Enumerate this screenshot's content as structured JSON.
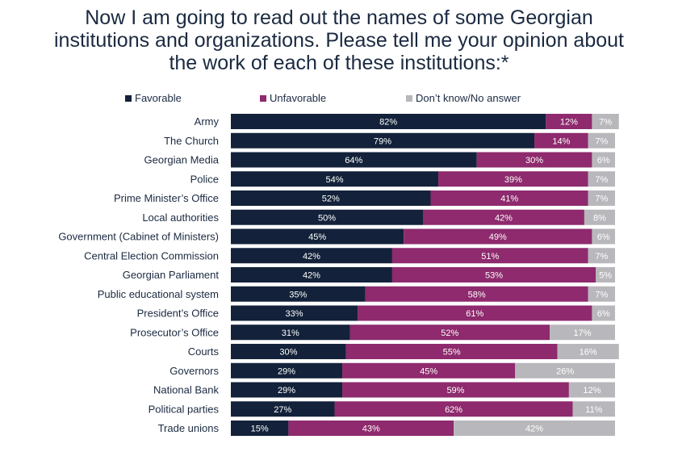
{
  "title_lines": [
    "Now I am going to read out the names of some Georgian",
    "institutions and organizations. Please tell me your opinion about",
    "the work of each of these institutions:*"
  ],
  "colors": {
    "favorable": "#13223a",
    "unfavorable": "#8e2a6d",
    "dont_know": "#b8b8bc",
    "title": "#1b2a41"
  },
  "chart_data": {
    "type": "bar",
    "orientation": "horizontal",
    "stacked": true,
    "xlim": [
      0,
      100
    ],
    "grid": false,
    "legend_position": "top",
    "categories": [
      "Army",
      "The Church",
      "Georgian Media",
      "Police",
      "Prime Minister’s Office",
      "Local authorities",
      "Government (Cabinet of Ministers)",
      "Central Election Commission",
      "Georgian Parliament",
      "Public educational system",
      "President’s Office",
      "Prosecutor’s Office",
      "Courts",
      "Governors",
      "National Bank",
      "Political parties",
      "Trade unions"
    ],
    "series": [
      {
        "name": "Favorable",
        "values": [
          82,
          79,
          64,
          54,
          52,
          50,
          45,
          42,
          42,
          35,
          33,
          31,
          30,
          29,
          29,
          27,
          15
        ]
      },
      {
        "name": "Unfavorable",
        "values": [
          12,
          14,
          30,
          39,
          41,
          42,
          49,
          51,
          53,
          58,
          61,
          52,
          55,
          45,
          59,
          62,
          43
        ]
      },
      {
        "name": "Don’t know/No answer",
        "values": [
          7,
          7,
          6,
          7,
          7,
          8,
          6,
          7,
          5,
          7,
          6,
          17,
          16,
          26,
          12,
          11,
          42
        ]
      }
    ],
    "value_suffix": "%"
  }
}
